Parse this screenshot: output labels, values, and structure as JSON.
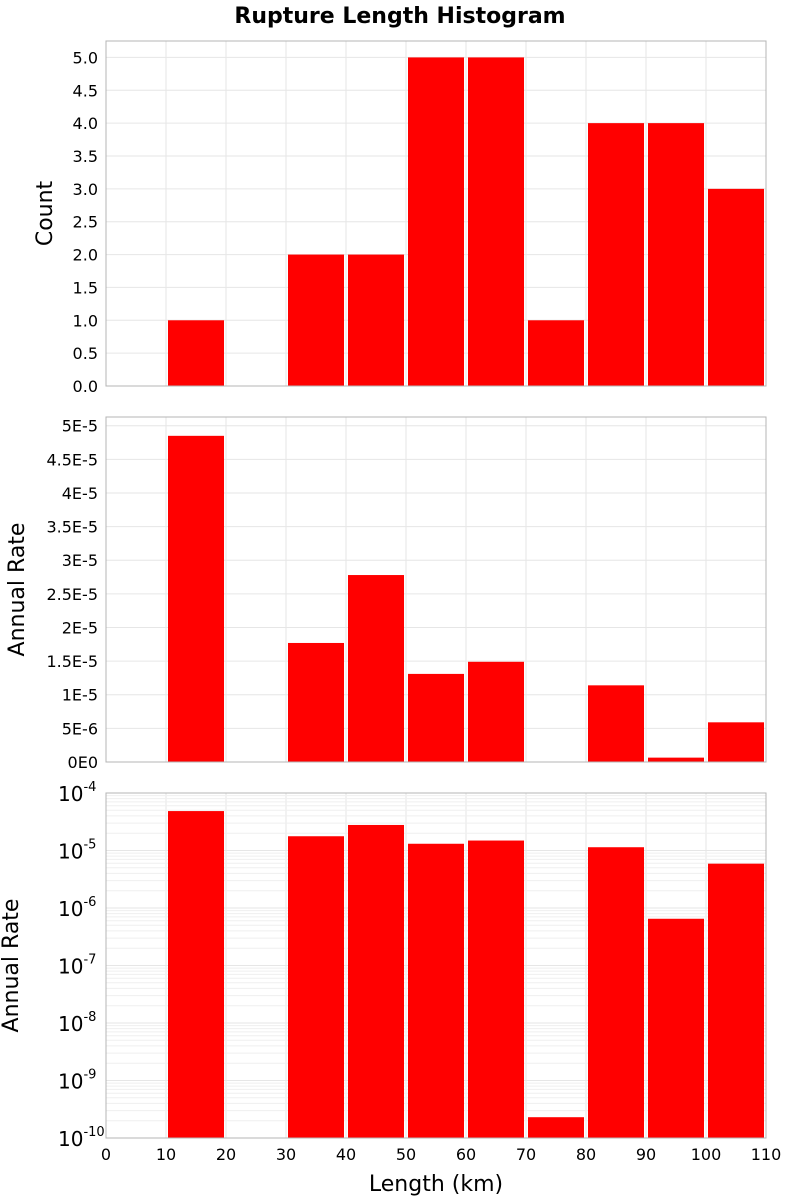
{
  "colors": {
    "bar": "#ff0000",
    "grid": "#e6e6e6",
    "frame": "#b4b4b4"
  },
  "chart_data": {
    "title": "Rupture Length Histogram",
    "type": "bar",
    "xlabel": "Length (km)",
    "xlim": [
      0,
      110
    ],
    "xticks": [
      0,
      10,
      20,
      30,
      40,
      50,
      60,
      70,
      80,
      90,
      100,
      110
    ],
    "bins": [
      {
        "x0": 10,
        "x1": 20
      },
      {
        "x0": 30,
        "x1": 40
      },
      {
        "x0": 40,
        "x1": 50
      },
      {
        "x0": 50,
        "x1": 60
      },
      {
        "x0": 60,
        "x1": 70
      },
      {
        "x0": 70,
        "x1": 80
      },
      {
        "x0": 80,
        "x1": 90
      },
      {
        "x0": 90,
        "x1": 100
      },
      {
        "x0": 100,
        "x1": 110
      }
    ],
    "panels": [
      {
        "id": "count",
        "ylabel": "Count",
        "scale": "linear",
        "ylim": [
          0,
          5.25
        ],
        "yticks": [
          0,
          0.5,
          1,
          1.5,
          2,
          2.5,
          3,
          3.5,
          4,
          4.5,
          5
        ],
        "ytick_labels": [
          "0.0",
          "0.5",
          "1.0",
          "1.5",
          "2.0",
          "2.5",
          "3.0",
          "3.5",
          "4.0",
          "4.5",
          "5.0"
        ],
        "values": [
          1,
          2,
          2,
          5,
          5,
          1,
          4,
          4,
          3
        ]
      },
      {
        "id": "rate-linear",
        "ylabel": "Annual Rate",
        "scale": "linear",
        "ylim": [
          0,
          5.13e-05
        ],
        "yticks": [
          0,
          5e-06,
          1e-05,
          1.5e-05,
          2e-05,
          2.5e-05,
          3e-05,
          3.5e-05,
          4e-05,
          4.5e-05,
          5e-05
        ],
        "ytick_labels": [
          "0E0",
          "5E-6",
          "1E-5",
          "1.5E-5",
          "2E-5",
          "2.5E-5",
          "3E-5",
          "3.5E-5",
          "4E-5",
          "4.5E-5",
          "5E-5"
        ],
        "values": [
          4.85e-05,
          1.77e-05,
          2.78e-05,
          1.31e-05,
          1.49e-05,
          2.3e-10,
          1.14e-05,
          6.5e-07,
          5.9e-06
        ]
      },
      {
        "id": "rate-log",
        "ylabel": "Annual Rate",
        "scale": "log",
        "ylim_exp": [
          -10,
          -4
        ],
        "ytick_exps": [
          "-4",
          "-5",
          "-6",
          "-7",
          "-8",
          "-9",
          "-10"
        ],
        "ytick_base": "10",
        "values": [
          4.85e-05,
          1.77e-05,
          2.78e-05,
          1.31e-05,
          1.49e-05,
          2.3e-10,
          1.14e-05,
          6.5e-07,
          5.9e-06
        ]
      }
    ]
  }
}
